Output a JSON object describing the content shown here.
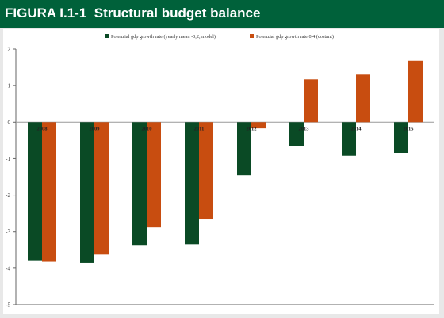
{
  "header": {
    "figure_label": "FIGURA I.1-1",
    "title": "Structural budget balance"
  },
  "colors": {
    "header_bg": "#00613a",
    "series_green": "#0a4a25",
    "series_orange": "#c84d10"
  },
  "chart_data": {
    "type": "bar",
    "categories": [
      "2008",
      "2009",
      "2010",
      "2011",
      "2012",
      "2013",
      "2014",
      "2015"
    ],
    "series": [
      {
        "name": "Potenzial gdp growth rate (yearly mean -0,2, model)",
        "color": "#0a4a25",
        "values": [
          -3.8,
          -3.85,
          -3.38,
          -3.36,
          -1.45,
          -0.65,
          -0.92,
          -0.85
        ]
      },
      {
        "name": "Potenzial gdp growth rate 0,4 (costant)",
        "color": "#c84d10",
        "values": [
          -3.82,
          -3.62,
          -2.88,
          -2.66,
          -0.17,
          1.17,
          1.3,
          1.68
        ]
      }
    ],
    "ylim": [
      -5,
      2
    ],
    "yticks": [
      "2",
      "1",
      "0",
      "-1",
      "-2",
      "-3",
      "-4",
      "-5"
    ],
    "legend_position": "top",
    "grid": false
  }
}
